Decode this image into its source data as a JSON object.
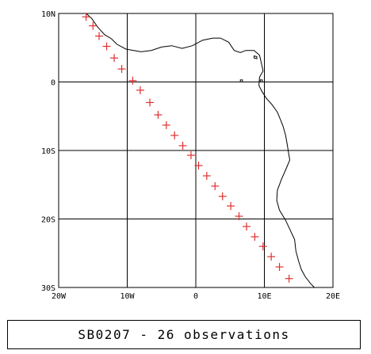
{
  "map": {
    "lon_range": [
      -20,
      20
    ],
    "lat_range": [
      -30,
      10
    ],
    "lon_ticks": [
      {
        "value": -20,
        "label": "20W"
      },
      {
        "value": -10,
        "label": "10W"
      },
      {
        "value": 0,
        "label": "0"
      },
      {
        "value": 10,
        "label": "10E"
      },
      {
        "value": 20,
        "label": "20E"
      }
    ],
    "lat_ticks": [
      {
        "value": 10,
        "label": "10N"
      },
      {
        "value": 0,
        "label": "0"
      },
      {
        "value": -10,
        "label": "10S"
      },
      {
        "value": -20,
        "label": "20S"
      },
      {
        "value": -30,
        "label": "30S"
      }
    ],
    "grid": true,
    "marker_color": "#e03030",
    "coastline_color": "#000000",
    "observations": [
      {
        "lon": -16.0,
        "lat": 9.5
      },
      {
        "lon": -15.0,
        "lat": 8.2
      },
      {
        "lon": -14.1,
        "lat": 6.7
      },
      {
        "lon": -13.0,
        "lat": 5.2
      },
      {
        "lon": -11.9,
        "lat": 3.5
      },
      {
        "lon": -10.8,
        "lat": 1.9
      },
      {
        "lon": -9.2,
        "lat": 0.2
      },
      {
        "lon": -8.1,
        "lat": -1.2
      },
      {
        "lon": -6.7,
        "lat": -3.0
      },
      {
        "lon": -5.5,
        "lat": -4.8
      },
      {
        "lon": -4.3,
        "lat": -6.3
      },
      {
        "lon": -3.1,
        "lat": -7.8
      },
      {
        "lon": -1.9,
        "lat": -9.3
      },
      {
        "lon": -0.7,
        "lat": -10.7
      },
      {
        "lon": 0.4,
        "lat": -12.2
      },
      {
        "lon": 1.6,
        "lat": -13.7
      },
      {
        "lon": 2.8,
        "lat": -15.2
      },
      {
        "lon": 3.9,
        "lat": -16.7
      },
      {
        "lon": 5.1,
        "lat": -18.1
      },
      {
        "lon": 6.3,
        "lat": -19.6
      },
      {
        "lon": 7.4,
        "lat": -21.1
      },
      {
        "lon": 8.6,
        "lat": -22.6
      },
      {
        "lon": 9.8,
        "lat": -24.0
      },
      {
        "lon": 11.0,
        "lat": -25.5
      },
      {
        "lon": 12.2,
        "lat": -27.0
      },
      {
        "lon": 13.6,
        "lat": -28.7
      }
    ],
    "coastline": [
      [
        -16.0,
        10.0
      ],
      [
        -15.2,
        9.3
      ],
      [
        -14.3,
        8.0
      ],
      [
        -13.3,
        6.9
      ],
      [
        -12.3,
        6.3
      ],
      [
        -11.5,
        5.5
      ],
      [
        -10.2,
        4.8
      ],
      [
        -8.0,
        4.4
      ],
      [
        -6.5,
        4.6
      ],
      [
        -5.0,
        5.1
      ],
      [
        -3.5,
        5.3
      ],
      [
        -2.0,
        4.9
      ],
      [
        -0.5,
        5.3
      ],
      [
        1.0,
        6.1
      ],
      [
        2.5,
        6.4
      ],
      [
        3.6,
        6.4
      ],
      [
        4.8,
        5.8
      ],
      [
        5.6,
        4.6
      ],
      [
        6.5,
        4.3
      ],
      [
        7.3,
        4.6
      ],
      [
        8.5,
        4.6
      ],
      [
        9.3,
        3.9
      ],
      [
        9.6,
        2.6
      ],
      [
        9.8,
        1.6
      ],
      [
        9.3,
        0.7
      ],
      [
        9.2,
        -0.5
      ],
      [
        9.6,
        -1.3
      ],
      [
        10.3,
        -2.4
      ],
      [
        11.1,
        -3.3
      ],
      [
        11.9,
        -4.4
      ],
      [
        12.3,
        -5.4
      ],
      [
        12.7,
        -6.4
      ],
      [
        13.1,
        -7.8
      ],
      [
        13.3,
        -8.9
      ],
      [
        13.5,
        -10.2
      ],
      [
        13.7,
        -11.4
      ],
      [
        13.2,
        -12.6
      ],
      [
        12.5,
        -14.2
      ],
      [
        11.9,
        -15.8
      ],
      [
        11.8,
        -17.3
      ],
      [
        12.2,
        -18.7
      ],
      [
        13.1,
        -20.2
      ],
      [
        13.8,
        -21.7
      ],
      [
        14.4,
        -23.0
      ],
      [
        14.6,
        -24.7
      ],
      [
        15.0,
        -26.2
      ],
      [
        15.4,
        -27.4
      ],
      [
        16.0,
        -28.5
      ],
      [
        16.8,
        -29.5
      ],
      [
        17.3,
        -30.0
      ]
    ],
    "islands": [
      [
        [
          8.5,
          3.8
        ],
        [
          8.9,
          3.7
        ],
        [
          8.9,
          3.4
        ],
        [
          8.5,
          3.5
        ]
      ],
      [
        [
          6.5,
          0.3
        ],
        [
          6.8,
          0.3
        ],
        [
          6.8,
          0.0
        ],
        [
          6.5,
          0.0
        ]
      ],
      [
        [
          9.4,
          0.3
        ],
        [
          9.7,
          0.3
        ],
        [
          9.7,
          0.0
        ],
        [
          9.4,
          0.0
        ]
      ]
    ]
  },
  "caption": {
    "text": "SB0207 - 26 observations"
  }
}
